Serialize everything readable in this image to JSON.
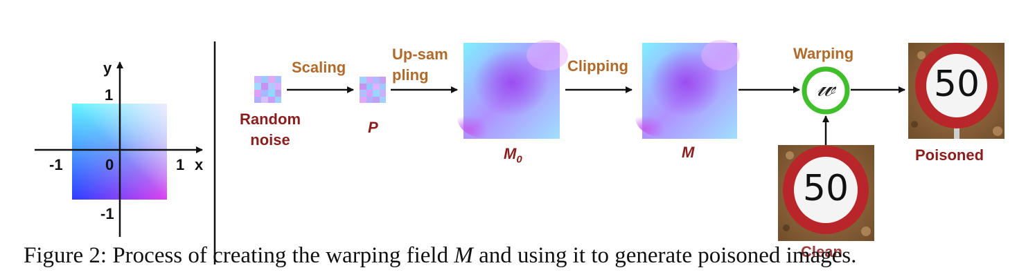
{
  "axes": {
    "y_label": "y",
    "x_label": "x",
    "tick_pos_y": "1",
    "tick_neg_y": "-1",
    "tick_neg_x": "-1",
    "tick_pos_x": "1",
    "origin": "0"
  },
  "pipeline": {
    "random_noise_l1": "Random",
    "random_noise_l2": "noise",
    "scaling": "Scaling",
    "p_label": "P",
    "upsampling_l1": "Up-sam",
    "upsampling_l2": "pling",
    "m0_label": "M",
    "m0_sub": "0",
    "clipping": "Clipping",
    "m_label": "M",
    "warping": "Warping",
    "warp_symbol": "𝓌",
    "poisoned": "Poisoned",
    "clean": "Clean",
    "sign_value": "50"
  },
  "caption": {
    "prefix": "Figure 2: Process of creating the warping field ",
    "symbol": "M",
    "suffix": " and using it to generate poisoned images."
  },
  "colors": {
    "label_brown": "#b06a2a",
    "label_red": "#8c1d1d",
    "warp_ring": "#3fbf2a"
  }
}
